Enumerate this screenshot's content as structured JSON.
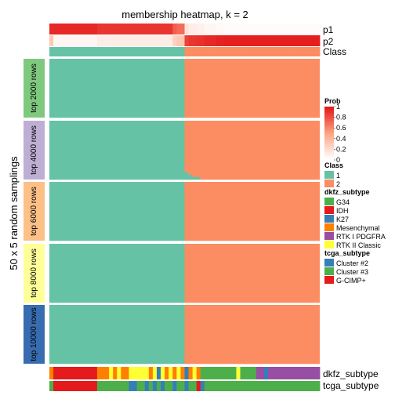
{
  "chart_data": {
    "type": "heatmap",
    "title": "membership heatmap, k = 2",
    "y_axis_label": "50 x 5 random samplings",
    "n_samples": 68,
    "class_colors": {
      "1": "#66C2A5",
      "2": "#FC8D62"
    },
    "prob_colors": {
      "low": "#FFFFFF",
      "mid": "#FCA382",
      "high": "#E41A1C"
    },
    "top_annotations": [
      {
        "label": "p1",
        "values": [
          0.95,
          0.95,
          0.95,
          0.95,
          0.95,
          0.95,
          0.95,
          0.95,
          0.95,
          0.95,
          0.95,
          0.95,
          0.9,
          0.9,
          0.9,
          0.9,
          0.9,
          0.9,
          0.9,
          0.9,
          0.9,
          0.9,
          0.9,
          0.9,
          0.9,
          0.9,
          0.9,
          0.9,
          0.9,
          0.9,
          0.9,
          0.75,
          0.7,
          0.7,
          0.15,
          0.1,
          0.1,
          0.08,
          0.08,
          0.05,
          0.05,
          0.05,
          0.03,
          0.03,
          0.02,
          0.02,
          0.02,
          0.02,
          0.02,
          0.02,
          0.02,
          0.02,
          0.02,
          0.02,
          0.02,
          0.02,
          0.02,
          0.02,
          0.02,
          0.02,
          0.02,
          0.02,
          0.02,
          0.02,
          0.02,
          0.02,
          0.02,
          0.02
        ]
      },
      {
        "label": "p2",
        "values": [
          0.3,
          0.05,
          0.05,
          0.05,
          0.05,
          0.05,
          0.05,
          0.05,
          0.05,
          0.05,
          0.05,
          0.05,
          0.1,
          0.1,
          0.1,
          0.1,
          0.1,
          0.1,
          0.1,
          0.1,
          0.1,
          0.1,
          0.1,
          0.1,
          0.1,
          0.1,
          0.1,
          0.1,
          0.1,
          0.1,
          0.1,
          0.25,
          0.3,
          0.3,
          0.85,
          0.9,
          0.9,
          0.92,
          0.92,
          0.95,
          0.95,
          0.95,
          0.97,
          0.97,
          0.98,
          0.98,
          0.98,
          0.98,
          0.98,
          0.98,
          0.98,
          0.98,
          0.98,
          0.98,
          0.98,
          0.98,
          0.98,
          0.98,
          0.98,
          0.98,
          0.98,
          0.98,
          0.98,
          0.98,
          0.98,
          0.98,
          0.98,
          0.98
        ]
      },
      {
        "label": "Class",
        "values": [
          1,
          1,
          1,
          1,
          1,
          1,
          1,
          1,
          1,
          1,
          1,
          1,
          1,
          1,
          1,
          1,
          1,
          1,
          1,
          1,
          1,
          1,
          1,
          1,
          1,
          1,
          1,
          1,
          1,
          1,
          1,
          1,
          1,
          1,
          2,
          2,
          2,
          2,
          2,
          2,
          2,
          2,
          2,
          2,
          2,
          2,
          2,
          2,
          2,
          2,
          2,
          2,
          2,
          2,
          2,
          2,
          2,
          2,
          2,
          2,
          2,
          2,
          2,
          2,
          2,
          2,
          2,
          2
        ]
      }
    ],
    "row_groups": [
      {
        "label": "top 2000 rows",
        "color": "#7FC97F",
        "n_rows": 50,
        "class1_end": [
          34,
          34,
          34,
          34,
          34,
          34,
          34,
          34,
          34,
          34,
          34,
          34,
          34,
          34,
          34,
          34,
          34,
          34,
          34,
          34,
          34,
          34,
          34,
          34,
          34,
          34,
          34,
          34,
          34,
          34,
          34,
          34,
          34,
          34,
          34,
          34,
          34,
          34,
          34,
          34,
          34,
          34,
          34,
          34,
          34,
          34,
          34,
          34,
          34,
          34
        ]
      },
      {
        "label": "top 4000 rows",
        "color": "#BEAED4",
        "n_rows": 50,
        "class1_end": [
          34,
          34,
          34,
          34,
          34,
          34,
          34,
          34,
          34,
          34,
          34,
          34,
          34,
          34,
          34,
          34,
          34,
          34,
          34,
          34,
          34,
          34,
          34,
          34,
          34,
          34,
          34,
          34,
          34,
          34,
          34,
          34,
          34,
          34,
          34,
          34,
          34,
          34,
          34,
          34,
          34,
          34,
          34,
          34,
          35,
          35,
          36,
          36,
          38,
          38
        ]
      },
      {
        "label": "top 6000 rows",
        "color": "#FDC086",
        "n_rows": 50,
        "class1_end": [
          34,
          34,
          34,
          34,
          34,
          34,
          34,
          34,
          34,
          34,
          34,
          34,
          34,
          34,
          34,
          34,
          34,
          34,
          34,
          34,
          34,
          34,
          34,
          34,
          34,
          34,
          34,
          34,
          34,
          34,
          34,
          34,
          34,
          34,
          34,
          34,
          34,
          34,
          34,
          34,
          34,
          34,
          34,
          34,
          34,
          34,
          34,
          34,
          34,
          34
        ]
      },
      {
        "label": "top 8000 rows",
        "color": "#FFFF99",
        "n_rows": 50,
        "class1_end": [
          34,
          34,
          34,
          34,
          34,
          34,
          34,
          34,
          34,
          34,
          34,
          34,
          34,
          34,
          34,
          34,
          34,
          34,
          34,
          34,
          34,
          34,
          34,
          34,
          34,
          34,
          34,
          34,
          34,
          34,
          34,
          34,
          34,
          34,
          34,
          34,
          34,
          34,
          34,
          34,
          34,
          34,
          34,
          34,
          34,
          34,
          34,
          34,
          34,
          34
        ]
      },
      {
        "label": "top 10000 rows",
        "color": "#386CB0",
        "n_rows": 50,
        "class1_end": [
          34,
          34,
          34,
          34,
          34,
          34,
          34,
          34,
          34,
          34,
          34,
          34,
          34,
          34,
          34,
          34,
          34,
          34,
          34,
          34,
          34,
          34,
          34,
          34,
          34,
          34,
          34,
          34,
          34,
          34,
          34,
          34,
          34,
          34,
          34,
          34,
          34,
          34,
          34,
          34,
          34,
          34,
          34,
          34,
          34,
          34,
          34,
          34,
          34,
          34
        ]
      }
    ],
    "bottom_annotations": [
      {
        "label": "dkfz_subtype",
        "values": [
          "Mesenchymal",
          "IDH",
          "IDH",
          "IDH",
          "IDH",
          "IDH",
          "IDH",
          "IDH",
          "IDH",
          "IDH",
          "IDH",
          "IDH",
          "Mesenchymal",
          "Mesenchymal",
          "Mesenchymal",
          "RTK II Classic",
          "Mesenchymal",
          "RTK II Classic",
          "Mesenchymal",
          "Mesenchymal",
          "RTK II Classic",
          "RTK II Classic",
          "RTK II Classic",
          "RTK II Classic",
          "RTK II Classic",
          "Mesenchymal",
          "RTK II Classic",
          "K27",
          "RTK II Classic",
          "Mesenchymal",
          "RTK II Classic",
          "Mesenchymal",
          "RTK II Classic",
          "Mesenchymal",
          "K27",
          "Mesenchymal",
          "RTK II Classic",
          "Mesenchymal",
          "G34",
          "G34",
          "G34",
          "G34",
          "G34",
          "G34",
          "G34",
          "G34",
          "G34",
          "RTK II Classic",
          "G34",
          "G34",
          "G34",
          "G34",
          "RTK I PDGFRA",
          "RTK I PDGFRA",
          "K27",
          "RTK I PDGFRA",
          "RTK I PDGFRA",
          "RTK I PDGFRA",
          "RTK I PDGFRA",
          "RTK I PDGFRA",
          "RTK I PDGFRA",
          "RTK I PDGFRA",
          "RTK I PDGFRA",
          "RTK I PDGFRA",
          "RTK I PDGFRA",
          "RTK I PDGFRA",
          "RTK I PDGFRA",
          "RTK I PDGFRA"
        ]
      },
      {
        "label": "tcga_subtype",
        "values": [
          "Cluster #3",
          "G-CIMP+",
          "G-CIMP+",
          "G-CIMP+",
          "G-CIMP+",
          "G-CIMP+",
          "G-CIMP+",
          "G-CIMP+",
          "G-CIMP+",
          "G-CIMP+",
          "G-CIMP+",
          "G-CIMP+",
          "Cluster #3",
          "Cluster #3",
          "Cluster #3",
          "Cluster #3",
          "Cluster #3",
          "Cluster #3",
          "Cluster #3",
          "Cluster #3",
          "Cluster #2",
          "Cluster #2",
          "Cluster #3",
          "Cluster #3",
          "Cluster #2",
          "Cluster #3",
          "Cluster #2",
          "Cluster #3",
          "Cluster #2",
          "Cluster #3",
          "Cluster #3",
          "Cluster #2",
          "Cluster #3",
          "Cluster #3",
          "Cluster #2",
          "Cluster #3",
          "Cluster #3",
          "G-CIMP+",
          "Cluster #2",
          "Cluster #3",
          "Cluster #3",
          "Cluster #3",
          "Cluster #3",
          "Cluster #3",
          "Cluster #3",
          "Cluster #3",
          "Cluster #3",
          "Cluster #3",
          "Cluster #3",
          "Cluster #3",
          "Cluster #3",
          "Cluster #3",
          "Cluster #3",
          "Cluster #3",
          "Cluster #3",
          "Cluster #3",
          "Cluster #3",
          "Cluster #3",
          "Cluster #3",
          "Cluster #3",
          "Cluster #3",
          "Cluster #3",
          "Cluster #3",
          "Cluster #3",
          "Cluster #3",
          "Cluster #3",
          "Cluster #3",
          "Cluster #3"
        ]
      }
    ],
    "legends": [
      {
        "title": "Prob",
        "kind": "gradient",
        "ticks": [
          "1",
          "0.8",
          "0.6",
          "0.4",
          "0.2",
          "0"
        ]
      },
      {
        "title": "Class",
        "kind": "discrete",
        "items": [
          {
            "label": "1",
            "color": "#66C2A5"
          },
          {
            "label": "2",
            "color": "#FC8D62"
          }
        ]
      },
      {
        "title": "dkfz_subtype",
        "kind": "discrete",
        "items": [
          {
            "label": "G34",
            "color": "#4DAF4A"
          },
          {
            "label": "IDH",
            "color": "#E41A1C"
          },
          {
            "label": "K27",
            "color": "#377EB8"
          },
          {
            "label": "Mesenchymal",
            "color": "#FF7F00"
          },
          {
            "label": "RTK I PDGFRA",
            "color": "#984EA3"
          },
          {
            "label": "RTK II Classic",
            "color": "#FFFF33"
          }
        ]
      },
      {
        "title": "tcga_subtype",
        "kind": "discrete",
        "items": [
          {
            "label": "Cluster #2",
            "color": "#377EB8"
          },
          {
            "label": "Cluster #3",
            "color": "#4DAF4A"
          },
          {
            "label": "G-CIMP+",
            "color": "#E41A1C"
          }
        ]
      }
    ]
  }
}
